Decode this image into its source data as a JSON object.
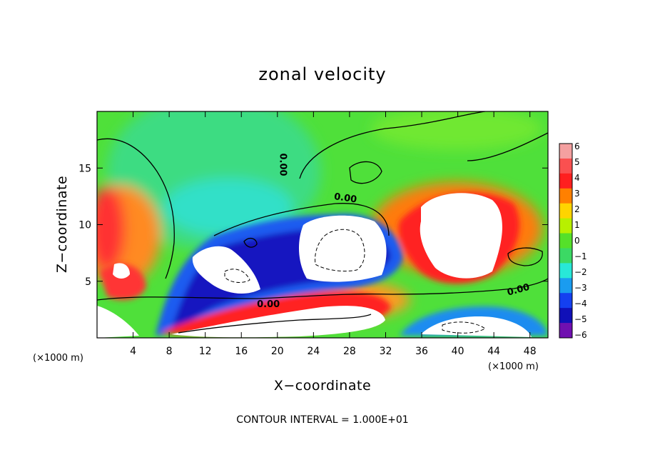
{
  "chart_data": {
    "type": "heatmap",
    "title": "zonal velocity",
    "xlabel": "X−coordinate",
    "ylabel": "Z−coordinate",
    "x_unit": "(×1000 m)",
    "y_unit": "(×1000 m)",
    "xlim": [
      0,
      50
    ],
    "ylim": [
      0,
      20
    ],
    "x_ticks": [
      4,
      8,
      12,
      16,
      20,
      24,
      28,
      32,
      36,
      40,
      44,
      48
    ],
    "x_tick_labels": [
      "4",
      "8",
      "12",
      "16",
      "20",
      "24",
      "28",
      "32",
      "36",
      "40",
      "44",
      "48"
    ],
    "y_ticks": [
      5,
      10,
      15
    ],
    "y_tick_labels": [
      "5",
      "10",
      "15"
    ],
    "colorbar": {
      "min": -6,
      "max": 6,
      "levels": [
        6,
        5,
        4,
        3,
        2,
        1,
        0,
        -1,
        -2,
        -3,
        -4,
        -5,
        -6
      ],
      "labels": [
        "6",
        "5",
        "4",
        "3",
        "2",
        "1",
        "0",
        "−1",
        "−2",
        "−3",
        "−4",
        "−5",
        "−6"
      ],
      "colors": [
        "#f4a0a0",
        "#fa5050",
        "#ff1f1f",
        "#ff8000",
        "#ffd400",
        "#b8f000",
        "#55e02a",
        "#3bd964",
        "#28e8d8",
        "#1a9cf0",
        "#1440f0",
        "#1010b8",
        "#7010b0"
      ]
    },
    "contour_labels": [
      {
        "text": "0.00",
        "x": 20.3,
        "y": 15.3,
        "angle": 90
      },
      {
        "text": "0.00",
        "x": 27.5,
        "y": 12.1,
        "angle": 8
      },
      {
        "text": "0.00",
        "x": 19.0,
        "y": 2.7,
        "angle": 0
      },
      {
        "text": "0.00",
        "x": 46.8,
        "y": 4.0,
        "angle": -15
      }
    ],
    "footer": "CONTOUR INTERVAL = 1.000E+01"
  }
}
